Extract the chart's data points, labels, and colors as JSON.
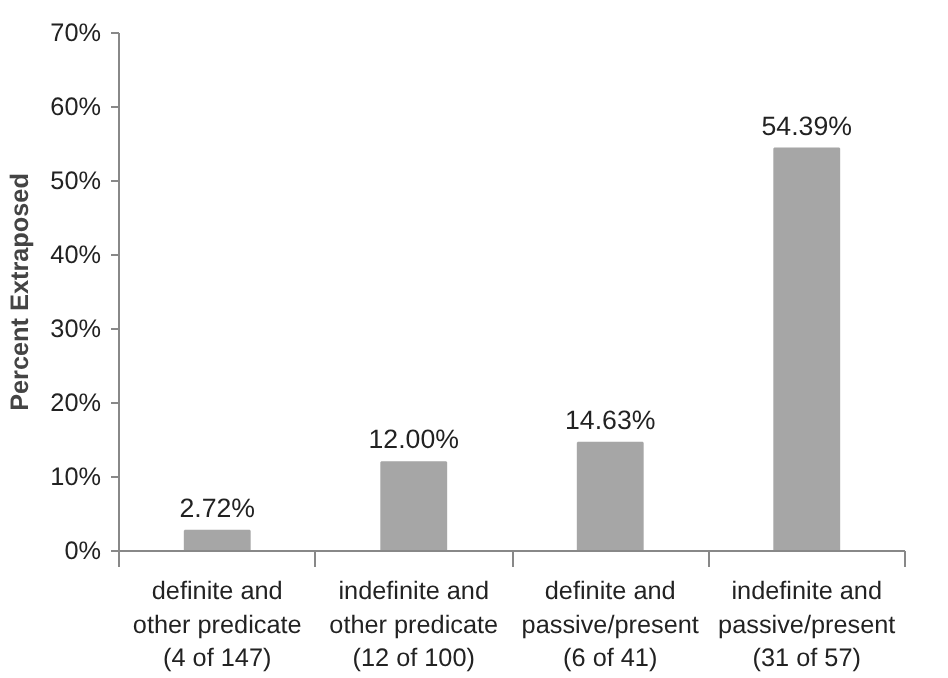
{
  "chart_data": {
    "type": "bar",
    "ylabel": "Percent Extraposed",
    "categories": [
      "definite and\nother predicate\n(4 of 147)",
      "indefinite and\nother predicate\n(12 of 100)",
      "definite and\npassive/present\n(6 of 41)",
      "indefinite and\npassive/present\n(31 of 57)"
    ],
    "values": [
      2.72,
      12.0,
      14.63,
      54.39
    ],
    "value_labels": [
      "2.72%",
      "12.00%",
      "14.63%",
      "54.39%"
    ],
    "color": "#a6a6a6",
    "ylim": [
      0,
      70
    ],
    "yticks": [
      {
        "value": 0,
        "label": "0%"
      },
      {
        "value": 10,
        "label": "10%"
      },
      {
        "value": 20,
        "label": "20%"
      },
      {
        "value": 30,
        "label": "30%"
      },
      {
        "value": 40,
        "label": "40%"
      },
      {
        "value": 50,
        "label": "50%"
      },
      {
        "value": 60,
        "label": "60%"
      },
      {
        "value": 70,
        "label": "70%"
      }
    ],
    "grid": false
  }
}
